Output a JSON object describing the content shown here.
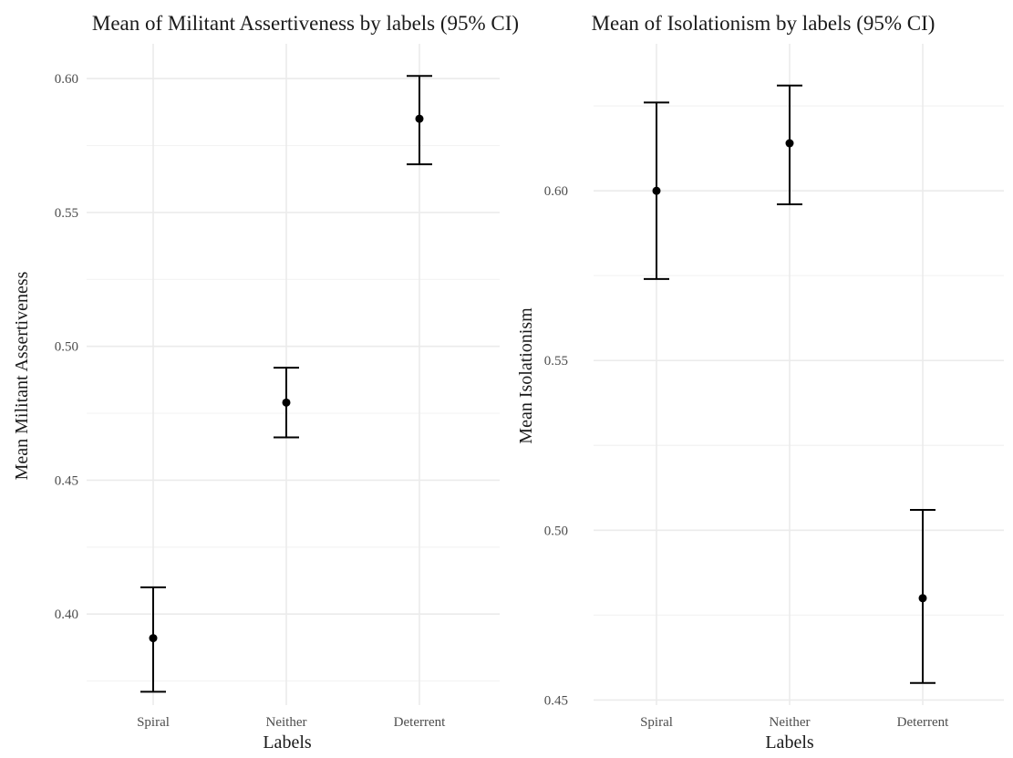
{
  "chart_data": [
    {
      "type": "scatter",
      "subtype": "point-with-errorbar",
      "title": "Mean of Militant Assertiveness by labels (95% CI)",
      "xlabel": "Labels",
      "ylabel": "Mean Militant Assertiveness",
      "categories": [
        "Spiral",
        "Neither",
        "Deterrent"
      ],
      "values": [
        0.391,
        0.479,
        0.585
      ],
      "ci_lower": [
        0.371,
        0.466,
        0.568
      ],
      "ci_upper": [
        0.41,
        0.492,
        0.601
      ],
      "ylim": [
        0.366,
        0.613
      ],
      "yticks": [
        0.4,
        0.45,
        0.5,
        0.55,
        0.6
      ],
      "ytick_labels": [
        "0.40",
        "0.45",
        "0.50",
        "0.55",
        "0.60"
      ],
      "grid": true,
      "legend": "none"
    },
    {
      "type": "scatter",
      "subtype": "point-with-errorbar",
      "title": "Mean of Isolationism by labels (95% CI)",
      "xlabel": "Labels",
      "ylabel": "Mean Isolationism",
      "categories": [
        "Spiral",
        "Neither",
        "Deterrent"
      ],
      "values": [
        0.6,
        0.614,
        0.48
      ],
      "ci_lower": [
        0.574,
        0.596,
        0.455
      ],
      "ci_upper": [
        0.626,
        0.631,
        0.506
      ],
      "ylim": [
        0.4485,
        0.6433
      ],
      "yticks": [
        0.45,
        0.5,
        0.55,
        0.6
      ],
      "ytick_labels": [
        "0.45",
        "0.50",
        "0.55",
        "0.60"
      ],
      "grid": true,
      "legend": "none"
    }
  ]
}
